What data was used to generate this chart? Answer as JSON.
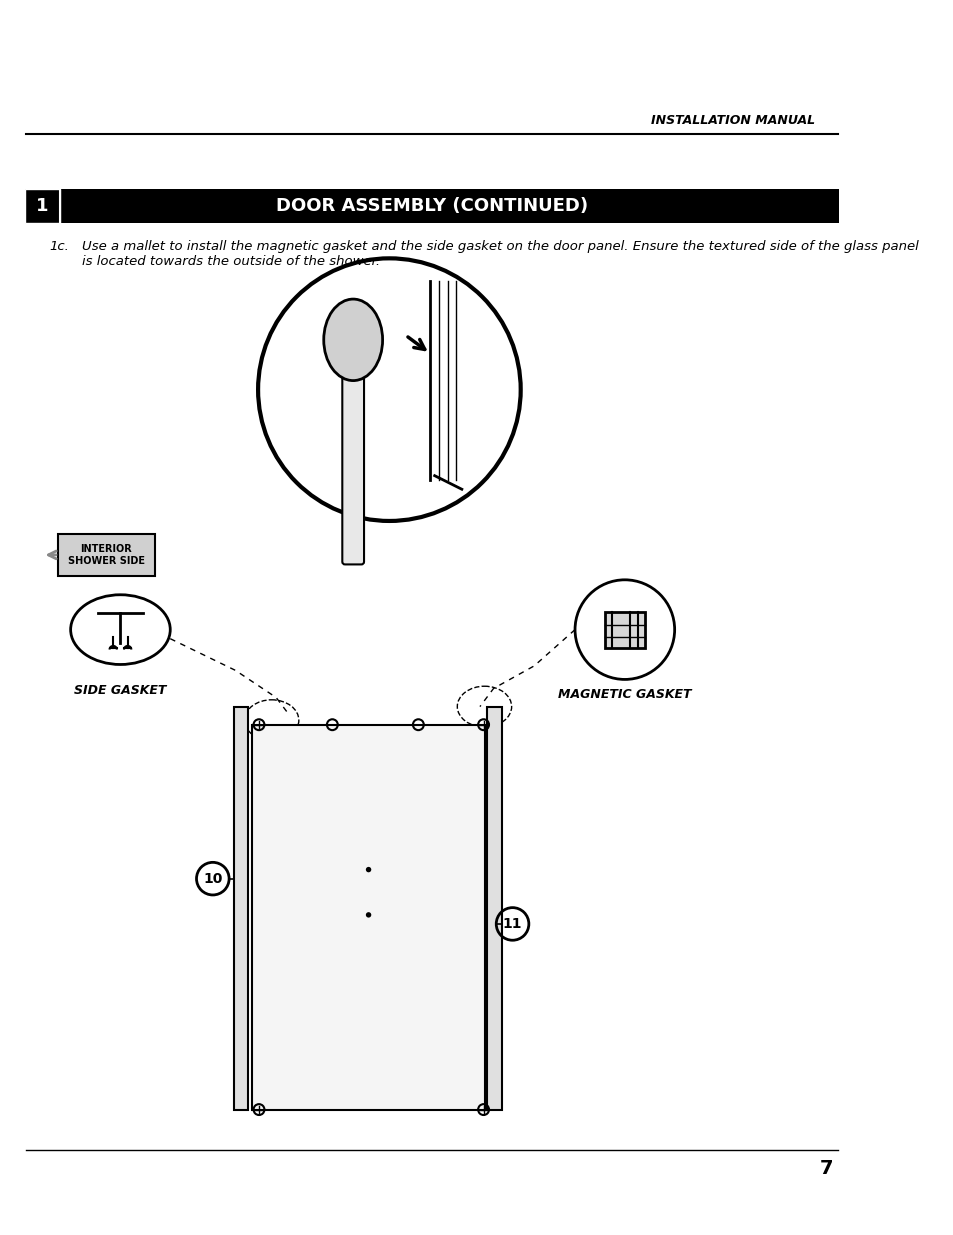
{
  "page_title": "INSTALLATION MANUAL",
  "section_number": "1",
  "section_title": "DOOR ASSEMBLY (CONTINUED)",
  "instruction_label": "1c.",
  "instruction_text": "Use a mallet to install the magnetic gasket and the side gasket on the door panel. Ensure the textured side of the glass panel\nis located towards the outside of the shower.",
  "label_side_gasket": "SIDE GASKET",
  "label_magnetic_gasket": "MAGNETIC GASKET",
  "label_interior": "INTERIOR\nSHOWER SIDE",
  "label_10": "10",
  "label_11": "11",
  "page_number": "7",
  "bg_color": "#ffffff",
  "header_bg": "#000000",
  "header_text_color": "#ffffff",
  "text_color": "#000000",
  "line_color": "#000000",
  "gray_box_bg": "#d0d0d0"
}
